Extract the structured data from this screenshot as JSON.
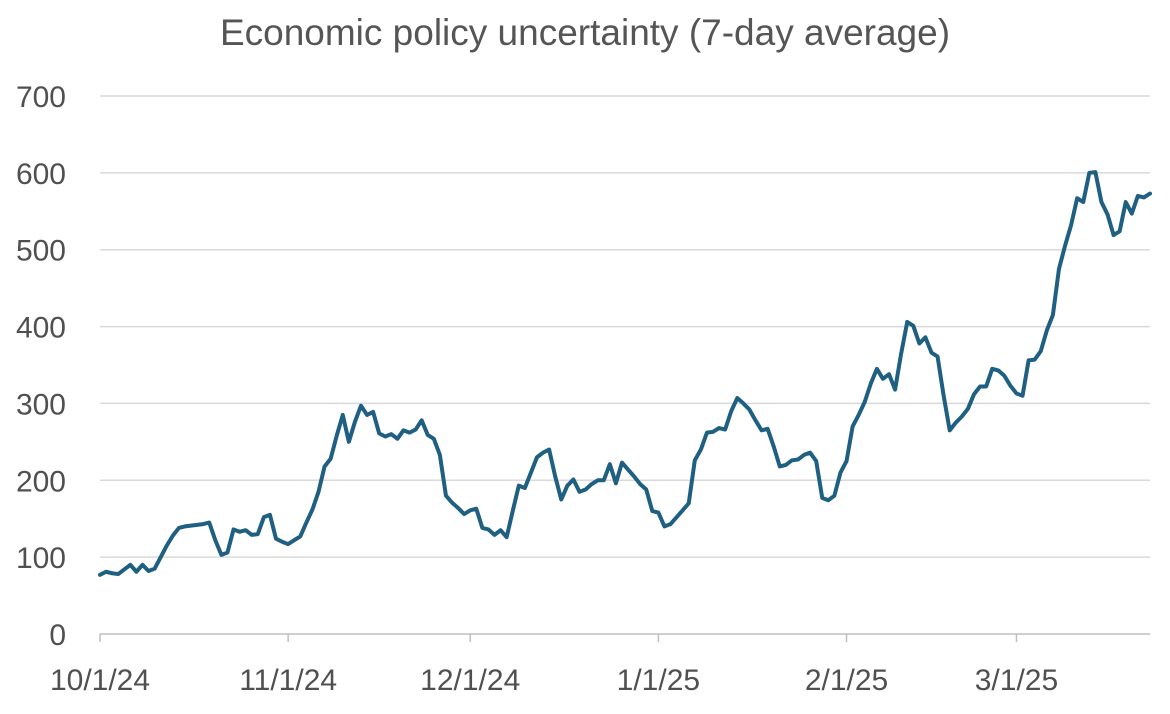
{
  "chart_data": {
    "type": "line",
    "title": "Economic policy uncertainty (7-day average)",
    "xlabel": "",
    "ylabel": "",
    "ylim": [
      0,
      700
    ],
    "y_ticks": [
      "0",
      "100",
      "200",
      "300",
      "400",
      "500",
      "600",
      "700"
    ],
    "x_ticks": [
      {
        "label": "10/1/24",
        "date": "2024-10-01"
      },
      {
        "label": "11/1/24",
        "date": "2024-11-01"
      },
      {
        "label": "12/1/24",
        "date": "2024-12-01"
      },
      {
        "label": "1/1/25",
        "date": "2025-01-01"
      },
      {
        "label": "2/1/25",
        "date": "2025-02-01"
      },
      {
        "label": "3/1/25",
        "date": "2025-03-01"
      }
    ],
    "xlim": [
      "2024-10-01",
      "2025-03-23"
    ],
    "grid": true,
    "legend": "none",
    "line_color": "#1f5f82",
    "series": [
      {
        "x": [
          "2024-10-01",
          "2024-10-02",
          "2024-10-03",
          "2024-10-04",
          "2024-10-05",
          "2024-10-06",
          "2024-10-07",
          "2024-10-08",
          "2024-10-09",
          "2024-10-10",
          "2024-10-11",
          "2024-10-12",
          "2024-10-13",
          "2024-10-14",
          "2024-10-15",
          "2024-10-16",
          "2024-10-17",
          "2024-10-18",
          "2024-10-19",
          "2024-10-20",
          "2024-10-21",
          "2024-10-22",
          "2024-10-23",
          "2024-10-24",
          "2024-10-25",
          "2024-10-26",
          "2024-10-27",
          "2024-10-28",
          "2024-10-29",
          "2024-10-30",
          "2024-10-31",
          "2024-11-01",
          "2024-11-02",
          "2024-11-03",
          "2024-11-04",
          "2024-11-05",
          "2024-11-06",
          "2024-11-07",
          "2024-11-08",
          "2024-11-09",
          "2024-11-10",
          "2024-11-11",
          "2024-11-12",
          "2024-11-13",
          "2024-11-14",
          "2024-11-15",
          "2024-11-16",
          "2024-11-17",
          "2024-11-18",
          "2024-11-19",
          "2024-11-20",
          "2024-11-21",
          "2024-11-22",
          "2024-11-23",
          "2024-11-24",
          "2024-11-25",
          "2024-11-26",
          "2024-11-27",
          "2024-11-28",
          "2024-11-29",
          "2024-11-30",
          "2024-12-01",
          "2024-12-02",
          "2024-12-03",
          "2024-12-04",
          "2024-12-05",
          "2024-12-06",
          "2024-12-07",
          "2024-12-08",
          "2024-12-09",
          "2024-12-10",
          "2024-12-11",
          "2024-12-12",
          "2024-12-13",
          "2024-12-14",
          "2024-12-15",
          "2024-12-16",
          "2024-12-17",
          "2024-12-18",
          "2024-12-19",
          "2024-12-20",
          "2024-12-21",
          "2024-12-22",
          "2024-12-23",
          "2024-12-24",
          "2024-12-25",
          "2024-12-26",
          "2024-12-27",
          "2024-12-28",
          "2024-12-29",
          "2024-12-30",
          "2024-12-31",
          "2025-01-01",
          "2025-01-02",
          "2025-01-03",
          "2025-01-04",
          "2025-01-05",
          "2025-01-06",
          "2025-01-07",
          "2025-01-08",
          "2025-01-09",
          "2025-01-10",
          "2025-01-11",
          "2025-01-12",
          "2025-01-13",
          "2025-01-14",
          "2025-01-15",
          "2025-01-16",
          "2025-01-17",
          "2025-01-18",
          "2025-01-19",
          "2025-01-20",
          "2025-01-21",
          "2025-01-22",
          "2025-01-23",
          "2025-01-24",
          "2025-01-25",
          "2025-01-26",
          "2025-01-27",
          "2025-01-28",
          "2025-01-29",
          "2025-01-30",
          "2025-01-31",
          "2025-02-01",
          "2025-02-02",
          "2025-02-03",
          "2025-02-04",
          "2025-02-05",
          "2025-02-06",
          "2025-02-07",
          "2025-02-08",
          "2025-02-09",
          "2025-02-10",
          "2025-02-11",
          "2025-02-12",
          "2025-02-13",
          "2025-02-14",
          "2025-02-15",
          "2025-02-16",
          "2025-02-17",
          "2025-02-18",
          "2025-02-19",
          "2025-02-20",
          "2025-02-21",
          "2025-02-22",
          "2025-02-23",
          "2025-02-24",
          "2025-02-25",
          "2025-02-26",
          "2025-02-27",
          "2025-02-28",
          "2025-03-01",
          "2025-03-02",
          "2025-03-03",
          "2025-03-04",
          "2025-03-05",
          "2025-03-06",
          "2025-03-07",
          "2025-03-08",
          "2025-03-09",
          "2025-03-10",
          "2025-03-11",
          "2025-03-12",
          "2025-03-13",
          "2025-03-14",
          "2025-03-15",
          "2025-03-16",
          "2025-03-17",
          "2025-03-18",
          "2025-03-19",
          "2025-03-20",
          "2025-03-21",
          "2025-03-22",
          "2025-03-23"
        ],
        "values": [
          77,
          81,
          79,
          78,
          84,
          90,
          81,
          90,
          82,
          85,
          100,
          115,
          128,
          138,
          140,
          141,
          142,
          143,
          145,
          122,
          103,
          106,
          136,
          133,
          135,
          129,
          130,
          152,
          155,
          124,
          120,
          117,
          122,
          127,
          145,
          162,
          185,
          218,
          228,
          258,
          285,
          250,
          276,
          297,
          285,
          289,
          261,
          257,
          260,
          254,
          265,
          262,
          266,
          278,
          259,
          254,
          233,
          180,
          171,
          164,
          156,
          161,
          163,
          138,
          136,
          129,
          135,
          126,
          160,
          193,
          190,
          210,
          230,
          236,
          240,
          205,
          175,
          193,
          201,
          185,
          188,
          195,
          200,
          200,
          221,
          196,
          223,
          214,
          205,
          195,
          188,
          160,
          158,
          140,
          143,
          152,
          161,
          170,
          226,
          240,
          262,
          263,
          268,
          266,
          290,
          307,
          300,
          292,
          278,
          265,
          267,
          244,
          218,
          220,
          226,
          227,
          233,
          236,
          225,
          177,
          174,
          180,
          210,
          225,
          270,
          285,
          302,
          326,
          345,
          332,
          338,
          318,
          365,
          406,
          401,
          378,
          386,
          366,
          361,
          310,
          265,
          275,
          283,
          293,
          312,
          322,
          322,
          345,
          343,
          336,
          323,
          313,
          310,
          356,
          357,
          368,
          395,
          415,
          475,
          505,
          532,
          567,
          562,
          600,
          601,
          562,
          546,
          519,
          524,
          562,
          547,
          570,
          568,
          573
        ]
      }
    ]
  }
}
